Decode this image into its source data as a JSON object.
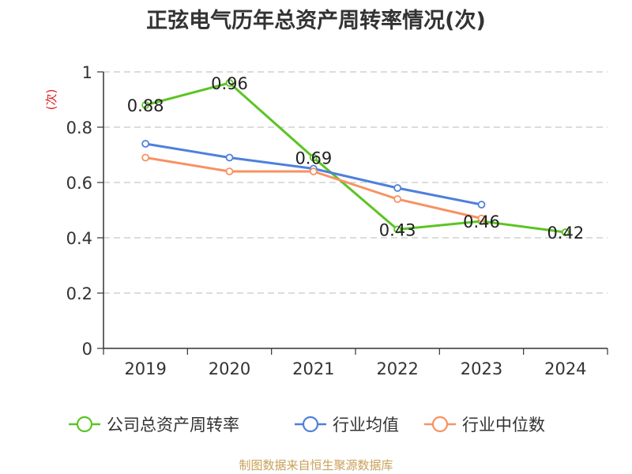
{
  "title": "正弦电气历年总资产周转率情况(次)",
  "source": "制图数据来自恒生聚源数据库",
  "chart_data": {
    "type": "line",
    "categories": [
      "2019",
      "2020",
      "2021",
      "2022",
      "2023",
      "2024"
    ],
    "ylabel": "(次)",
    "ylim": [
      0,
      1
    ],
    "yticks": [
      "0",
      "0.2",
      "0.4",
      "0.6",
      "0.8",
      "1"
    ],
    "grid": true,
    "legend_position": "bottom",
    "series": [
      {
        "name": "公司总资产周转率",
        "color": "#5cc424",
        "values": [
          0.88,
          0.96,
          0.69,
          0.43,
          0.46,
          0.42
        ],
        "labels": [
          "0.88",
          "0.96",
          "0.69",
          "0.43",
          "0.46",
          "0.42"
        ]
      },
      {
        "name": "行业均值",
        "color": "#4e80dc",
        "values": [
          0.74,
          0.69,
          0.65,
          0.58,
          0.52,
          null
        ]
      },
      {
        "name": "行业中位数",
        "color": "#f79262",
        "values": [
          0.69,
          0.64,
          0.64,
          0.54,
          0.47,
          null
        ]
      }
    ]
  }
}
